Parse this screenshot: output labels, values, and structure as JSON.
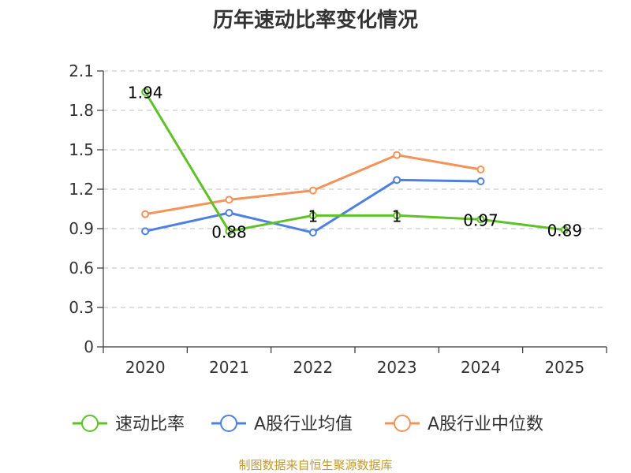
{
  "chart_data": {
    "type": "line",
    "title": "历年速动比率变化情况",
    "categories": [
      "2020",
      "2021",
      "2022",
      "2023",
      "2024",
      "2025"
    ],
    "ylim": [
      0,
      2.1
    ],
    "yticks": [
      "0",
      "0.3",
      "0.6",
      "0.9",
      "1.2",
      "1.5",
      "1.8",
      "2.1"
    ],
    "grid": true,
    "legend_position": "bottom",
    "series": [
      {
        "name": "速动比率",
        "color": "#5ec226",
        "values": [
          1.94,
          0.88,
          1.0,
          1.0,
          0.97,
          0.89
        ],
        "labels": [
          "1.94",
          "0.88",
          "1",
          "1",
          "0.97",
          "0.89"
        ]
      },
      {
        "name": "A股行业均值",
        "color": "#4f80e0",
        "values": [
          0.88,
          1.02,
          0.87,
          1.27,
          1.26,
          null
        ]
      },
      {
        "name": "A股行业中位数",
        "color": "#f59257",
        "values": [
          1.01,
          1.12,
          1.19,
          1.46,
          1.35,
          null
        ]
      }
    ],
    "source": "制图数据来自恒生聚源数据库"
  }
}
